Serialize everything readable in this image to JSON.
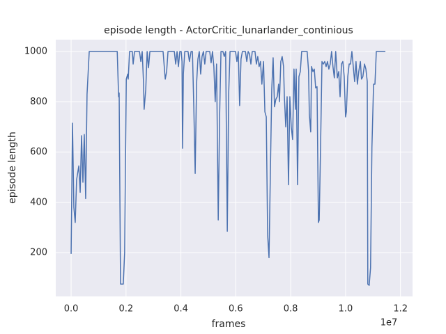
{
  "chart_data": {
    "type": "line",
    "title": "episode length - ActorCritic_lunarlander_continious",
    "x_label": "frames",
    "y_label": "episode length",
    "x_offset_label": "1e7",
    "grid": true,
    "xlim": [
      -0.056,
      1.244
    ],
    "ylim": [
      26,
      1047
    ],
    "xticks": [
      {
        "value": 0,
        "label": "0.0"
      },
      {
        "value": 0.2,
        "label": "0.2"
      },
      {
        "value": 0.4,
        "label": "0.4"
      },
      {
        "value": 0.6,
        "label": "0.6"
      },
      {
        "value": 0.8,
        "label": "0.8"
      },
      {
        "value": 1.0,
        "label": "1.0"
      },
      {
        "value": 1.2,
        "label": "1.2"
      }
    ],
    "yticks": [
      200,
      400,
      600,
      800,
      1000
    ],
    "x": [
      0,
      0.005,
      0.01,
      0.015,
      0.02,
      0.028,
      0.033,
      0.038,
      0.043,
      0.048,
      0.053,
      0.058,
      0.066,
      0.168,
      0.173,
      0.175,
      0.18,
      0.19,
      0.195,
      0.201,
      0.206,
      0.208,
      0.213,
      0.223,
      0.226,
      0.231,
      0.249,
      0.254,
      0.259,
      0.264,
      0.266,
      0.272,
      0.277,
      0.282,
      0.287,
      0.335,
      0.343,
      0.348,
      0.353,
      0.376,
      0.381,
      0.386,
      0.391,
      0.396,
      0.401,
      0.404,
      0.406,
      0.409,
      0.414,
      0.426,
      0.431,
      0.437,
      0.442,
      0.447,
      0.452,
      0.457,
      0.462,
      0.467,
      0.472,
      0.477,
      0.482,
      0.487,
      0.492,
      0.505,
      0.51,
      0.515,
      0.52,
      0.525,
      0.53,
      0.536,
      0.541,
      0.546,
      0.553,
      0.558,
      0.563,
      0.569,
      0.574,
      0.579,
      0.599,
      0.604,
      0.609,
      0.614,
      0.619,
      0.624,
      0.635,
      0.64,
      0.645,
      0.65,
      0.655,
      0.66,
      0.67,
      0.675,
      0.68,
      0.685,
      0.69,
      0.695,
      0.701,
      0.706,
      0.711,
      0.716,
      0.721,
      0.726,
      0.731,
      0.736,
      0.741,
      0.746,
      0.751,
      0.756,
      0.759,
      0.764,
      0.769,
      0.774,
      0.777,
      0.782,
      0.787,
      0.792,
      0.797,
      0.802,
      0.807,
      0.812,
      0.817,
      0.82,
      0.825,
      0.83,
      0.835,
      0.84,
      0.86,
      0.865,
      0.868,
      0.873,
      0.876,
      0.881,
      0.886,
      0.891,
      0.896,
      0.901,
      0.904,
      0.909,
      0.914,
      0.919,
      0.924,
      0.929,
      0.934,
      0.939,
      0.944,
      0.949,
      0.954,
      0.959,
      0.964,
      0.97,
      0.975,
      0.98,
      0.985,
      0.99,
      0.995,
      1.0,
      1.003,
      1.008,
      1.013,
      1.018,
      1.023,
      1.028,
      1.033,
      1.038,
      1.043,
      1.048,
      1.054,
      1.058,
      1.063,
      1.069,
      1.074,
      1.079,
      1.081,
      1.086,
      1.091,
      1.096,
      1.102,
      1.107,
      1.112,
      1.145
    ],
    "series": [
      {
        "color": "#4c72b0",
        "values": [
          195,
          715,
          380,
          320,
          490,
          545,
          440,
          665,
          480,
          670,
          415,
          830,
          1000,
          1000,
          820,
          835,
          75,
          75,
          200,
          890,
          910,
          890,
          1000,
          1000,
          950,
          1000,
          1000,
          960,
          1000,
          870,
          770,
          850,
          1000,
          935,
          1000,
          1000,
          890,
          920,
          1000,
          1000,
          950,
          1000,
          940,
          1000,
          1000,
          960,
          615,
          910,
          1000,
          1000,
          960,
          1000,
          1000,
          780,
          515,
          870,
          970,
          1000,
          910,
          980,
          1000,
          950,
          1000,
          1000,
          955,
          1000,
          940,
          800,
          950,
          330,
          740,
          1000,
          1000,
          980,
          1000,
          285,
          830,
          1000,
          1000,
          960,
          1000,
          785,
          970,
          1000,
          1000,
          960,
          1000,
          990,
          950,
          1000,
          1000,
          950,
          980,
          940,
          960,
          870,
          960,
          760,
          740,
          270,
          180,
          520,
          850,
          975,
          780,
          810,
          820,
          870,
          800,
          960,
          980,
          940,
          820,
          700,
          820,
          470,
          820,
          700,
          650,
          930,
          770,
          930,
          470,
          900,
          920,
          1000,
          1000,
          925,
          750,
          680,
          940,
          920,
          930,
          855,
          860,
          320,
          330,
          630,
          960,
          950,
          960,
          940,
          960,
          930,
          950,
          1000,
          940,
          895,
          1000,
          895,
          920,
          820,
          950,
          960,
          900,
          740,
          760,
          900,
          950,
          950,
          1000,
          940,
          880,
          960,
          870,
          920,
          960,
          890,
          900,
          950,
          930,
          880,
          75,
          70,
          140,
          620,
          870,
          870,
          1000,
          1000
        ]
      }
    ]
  }
}
